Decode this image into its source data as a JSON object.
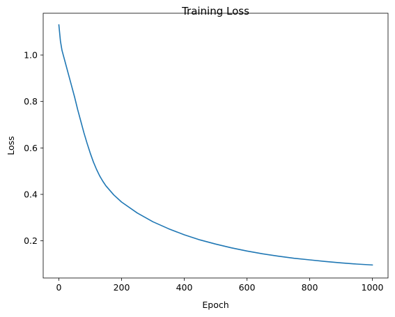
{
  "chart_data": {
    "type": "line",
    "title": "Training Loss",
    "xlabel": "Epoch",
    "ylabel": "Loss",
    "xlim": [
      -50,
      1050
    ],
    "ylim": [
      0.04,
      1.18
    ],
    "xticks": [
      0,
      200,
      400,
      600,
      800,
      1000
    ],
    "yticks": [
      0.2,
      0.4,
      0.6,
      0.8,
      1.0
    ],
    "xtick_labels": [
      "0",
      "200",
      "400",
      "600",
      "800",
      "1000"
    ],
    "ytick_labels": [
      "0.2",
      "0.4",
      "0.6",
      "0.8",
      "1.0"
    ],
    "grid": false,
    "legend": null,
    "series": [
      {
        "color": "#1f77b4",
        "x": [
          0,
          5,
          10,
          20,
          30,
          40,
          50,
          60,
          70,
          80,
          90,
          100,
          110,
          120,
          130,
          140,
          150,
          175,
          200,
          250,
          300,
          350,
          400,
          450,
          500,
          550,
          600,
          650,
          700,
          750,
          800,
          850,
          900,
          950,
          1000
        ],
        "y": [
          1.13,
          1.06,
          1.02,
          0.97,
          0.92,
          0.87,
          0.82,
          0.765,
          0.715,
          0.665,
          0.62,
          0.578,
          0.54,
          0.508,
          0.48,
          0.457,
          0.437,
          0.398,
          0.367,
          0.32,
          0.282,
          0.252,
          0.226,
          0.204,
          0.186,
          0.17,
          0.156,
          0.144,
          0.134,
          0.125,
          0.118,
          0.111,
          0.105,
          0.1,
          0.096
        ]
      }
    ]
  }
}
